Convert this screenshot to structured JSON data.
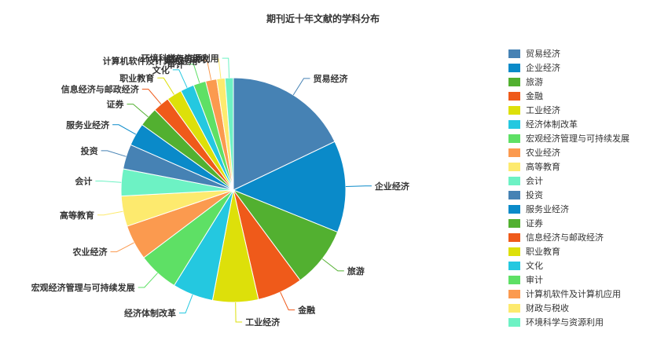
{
  "chart_data": {
    "type": "pie",
    "title": "期刊近十年文献的学科分布",
    "legend_position": "right",
    "slices": [
      {
        "name": "贸易经济",
        "value": 18.0,
        "color": "#4682b4"
      },
      {
        "name": "企业经济",
        "value": 13.3,
        "color": "#0a8ac9"
      },
      {
        "name": "旅游",
        "value": 8.8,
        "color": "#52b030"
      },
      {
        "name": "金融",
        "value": 6.6,
        "color": "#ef5a1a"
      },
      {
        "name": "工业经济",
        "value": 6.6,
        "color": "#dde00a"
      },
      {
        "name": "经济体制改革",
        "value": 5.9,
        "color": "#24c8e0"
      },
      {
        "name": "宏观经济管理与可持续发展",
        "value": 5.9,
        "color": "#5ee065"
      },
      {
        "name": "农业经济",
        "value": 5.1,
        "color": "#fb9a4f"
      },
      {
        "name": "高等教育",
        "value": 4.4,
        "color": "#fdea6e"
      },
      {
        "name": "会计",
        "value": 3.9,
        "color": "#6df2c4"
      },
      {
        "name": "投资",
        "value": 3.6,
        "color": "#4682b4"
      },
      {
        "name": "服务业经济",
        "value": 3.3,
        "color": "#0a8ac9"
      },
      {
        "name": "证券",
        "value": 2.8,
        "color": "#52b030"
      },
      {
        "name": "信息经济与邮政经济",
        "value": 2.4,
        "color": "#ef5a1a"
      },
      {
        "name": "职业教育",
        "value": 2.2,
        "color": "#dde00a"
      },
      {
        "name": "文化",
        "value": 2.0,
        "color": "#24c8e0"
      },
      {
        "name": "审计",
        "value": 1.8,
        "color": "#5ee065"
      },
      {
        "name": "计算机软件及计算机应用",
        "value": 1.6,
        "color": "#fb9a4f"
      },
      {
        "name": "财政与税收",
        "value": 1.2,
        "color": "#fdea6e"
      },
      {
        "name": "环境科学与资源利用",
        "value": 1.2,
        "color": "#6df2c4"
      }
    ]
  }
}
